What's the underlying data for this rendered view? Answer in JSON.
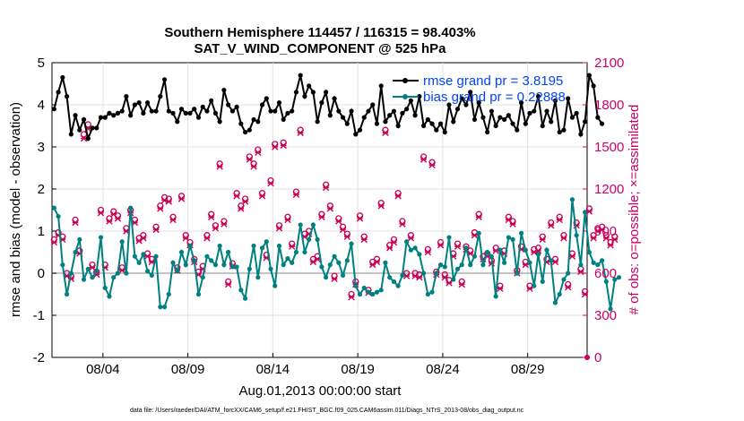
{
  "chart_data": {
    "type": "line",
    "title_line1": "Southern Hemisphere 114457 / 116315 = 98.403%",
    "title_line2": "SAT_V_WIND_COMPONENT @ 525 hPa",
    "xlabel": "Aug.01,2013 00:00:00 start",
    "ylabel_left": "rmse and bias (model - observation)",
    "ylabel_right": "# of obs: o=possible; ×=assimilated",
    "x_start": "Aug.01,2013 00:00:00",
    "xlim": [
      1,
      32.5
    ],
    "ylim_left": [
      -2,
      5
    ],
    "ylim_right": [
      0,
      2100
    ],
    "xticks": [
      {
        "day": 4,
        "label": "08/04"
      },
      {
        "day": 9,
        "label": "08/09"
      },
      {
        "day": 14,
        "label": "08/14"
      },
      {
        "day": 19,
        "label": "08/19"
      },
      {
        "day": 24,
        "label": "08/24"
      },
      {
        "day": 29,
        "label": "08/29"
      }
    ],
    "yticks_left": [
      "-2",
      "-1",
      "0",
      "1",
      "2",
      "3",
      "4",
      "5"
    ],
    "yticks_right": [
      "0",
      "300",
      "600",
      "900",
      "1200",
      "1500",
      "1800",
      "2100"
    ],
    "legend": [
      {
        "label": "rmse grand pr = 3.8195",
        "color": "#000000"
      },
      {
        "label": "bias grand pr = 0.22888",
        "color": "#008080"
      }
    ],
    "x_step_days": 0.25,
    "series": [
      {
        "name": "rmse",
        "color": "#000000",
        "values": [
          3.9,
          4.3,
          4.65,
          4.2,
          3.3,
          3.75,
          3.4,
          3.65,
          3.2,
          3.45,
          3.45,
          3.7,
          3.7,
          3.8,
          3.75,
          3.8,
          3.85,
          4.2,
          3.75,
          4.0,
          4.05,
          3.8,
          4.05,
          3.85,
          3.85,
          4.2,
          4.6,
          3.85,
          3.8,
          3.6,
          3.9,
          3.8,
          3.8,
          3.9,
          3.7,
          3.95,
          3.85,
          4.1,
          3.8,
          3.6,
          4.35,
          4.0,
          3.85,
          3.95,
          3.55,
          3.35,
          3.4,
          3.65,
          3.6,
          4.0,
          4.15,
          3.85,
          3.85,
          4.05,
          3.65,
          3.8,
          3.85,
          4.3,
          4.7,
          4.2,
          4.45,
          4.3,
          3.6,
          4.05,
          4.3,
          3.75,
          4.15,
          3.85,
          3.7,
          3.55,
          3.85,
          3.3,
          3.4,
          3.7,
          3.85,
          4.0,
          3.55,
          4.45,
          3.6,
          3.75,
          3.85,
          3.5,
          3.8,
          3.9,
          4.1,
          3.75,
          4.2,
          3.5,
          3.65,
          3.55,
          3.4,
          3.55,
          3.35,
          4.0,
          3.6,
          3.9,
          4.15,
          4.0,
          4.3,
          3.65,
          4.05,
          3.7,
          3.35,
          3.85,
          3.5,
          3.7,
          3.65,
          3.75,
          3.55,
          3.4,
          4.05,
          3.55,
          3.8,
          3.85,
          4.2,
          3.5,
          3.85,
          3.6,
          4.1,
          3.35,
          3.4,
          4.15,
          3.7,
          3.8,
          3.3,
          3.6,
          4.7,
          4.45,
          3.7,
          3.55
        ],
        "style": "line-markers"
      },
      {
        "name": "bias",
        "color": "#008080",
        "values": [
          1.55,
          1.35,
          0.2,
          -0.5,
          0.0,
          0.5,
          0.8,
          -0.15,
          0.1,
          -0.1,
          0.05,
          0.85,
          -0.35,
          -0.55,
          -0.1,
          0.0,
          0.75,
          0.0,
          1.55,
          0.4,
          0.25,
          0.45,
          0.05,
          -0.05,
          0.4,
          -0.8,
          -0.8,
          -0.5,
          0.25,
          0.05,
          0.5,
          0.2,
          0.65,
          0.3,
          -0.5,
          -0.1,
          0.4,
          0.3,
          0.2,
          0.65,
          0.2,
          0.5,
          0.15,
          0.15,
          -0.4,
          -0.6,
          0.1,
          0.65,
          -0.1,
          0.6,
          0.75,
          0.1,
          -0.3,
          0.65,
          0.2,
          0.35,
          0.25,
          0.5,
          1.15,
          0.5,
          0.8,
          1.15,
          0.8,
          0.15,
          -0.1,
          0.2,
          0.4,
          0.25,
          -0.05,
          0.3,
          0.7,
          -0.3,
          -0.5,
          -0.35,
          -0.45,
          -0.5,
          -0.45,
          -0.4,
          0.25,
          -0.1,
          -0.2,
          -0.3,
          -0.05,
          0.75,
          0.55,
          0.6,
          0.45,
          0.0,
          -0.5,
          -0.45,
          0.0,
          0.2,
          0.15,
          0.85,
          -0.15,
          0.1,
          0.2,
          0.6,
          0.2,
          0.4,
          0.95,
          0.2,
          0.5,
          0.4,
          -0.55,
          0.55,
          0.25,
          0.85,
          0.8,
          0.0,
          0.95,
          0.55,
          0.25,
          -0.3,
          0.45,
          -0.2,
          0.55,
          0.3,
          -0.7,
          -0.5,
          -0.15,
          0.0,
          1.75,
          0.9,
          0.2,
          1.45,
          0.5,
          0.25,
          0.2,
          0.3,
          -0.2,
          -0.85,
          -0.15,
          -0.1
        ]
      },
      {
        "name": "obs possible",
        "color": "#cc0055",
        "values": [
          840,
          890,
          860,
          600,
          580,
          980,
          760,
          1590,
          1660,
          660,
          610,
          1050,
          660,
          990,
          1040,
          1010,
          640,
          920,
          1050,
          980,
          850,
          870,
          740,
          700,
          930,
          1080,
          1140,
          1130,
          1000,
          640,
          1150,
          870,
          820,
          700,
          610,
          650,
          870,
          1020,
          940,
          1380,
          970,
          540,
          670,
          1170,
          1080,
          1130,
          1430,
          1380,
          1480,
          1170,
          730,
          1260,
          1520,
          940,
          1530,
          1000,
          810,
          1180,
          1620,
          880,
          900,
          700,
          720,
          1020,
          1230,
          1080,
          580,
          990,
          930,
          880,
          450,
          540,
          1010,
          860,
          480,
          680,
          700,
          1100,
          1620,
          800,
          840,
          1170,
          970,
          600,
          870,
          600,
          590,
          1430,
          770,
          1390,
          610,
          820,
          590,
          550,
          740,
          810,
          540,
          790,
          760,
          890,
          1020,
          720,
          740,
          690,
          780,
          510,
          760,
          1000,
          970,
          620,
          790,
          680,
          510,
          770,
          780,
          860,
          700,
          960,
          700,
          1000,
          870,
          520,
          740,
          960,
          630,
          470,
          1060,
          870,
          920,
          930,
          870,
          820,
          860
        ]
      },
      {
        "name": "obs assimilated",
        "color": "#cc0055",
        "values": [
          820,
          870,
          840,
          580,
          560,
          960,
          740,
          1560,
          1630,
          640,
          590,
          1030,
          640,
          970,
          1020,
          990,
          620,
          900,
          1030,
          960,
          830,
          850,
          720,
          680,
          910,
          1060,
          1120,
          1110,
          980,
          620,
          1130,
          850,
          800,
          680,
          590,
          630,
          850,
          1000,
          920,
          1360,
          950,
          520,
          650,
          1150,
          1060,
          1110,
          1410,
          1360,
          1460,
          1150,
          710,
          1240,
          1500,
          920,
          1510,
          980,
          790,
          1160,
          1600,
          860,
          880,
          680,
          700,
          1000,
          1210,
          1060,
          560,
          970,
          910,
          860,
          430,
          520,
          990,
          840,
          460,
          660,
          680,
          1080,
          1600,
          780,
          820,
          1150,
          950,
          580,
          850,
          580,
          570,
          1410,
          750,
          1370,
          590,
          800,
          570,
          530,
          720,
          790,
          520,
          770,
          740,
          870,
          1000,
          700,
          720,
          670,
          760,
          490,
          740,
          980,
          950,
          600,
          770,
          660,
          490,
          750,
          760,
          840,
          680,
          940,
          680,
          980,
          850,
          500,
          720,
          940,
          610,
          450,
          1040,
          850,
          900,
          910,
          850,
          800,
          840
        ]
      }
    ]
  },
  "footer": "data file: /Users/raeder/DAI/ATM_forcXX/CAM6_setup/f.e21.FHIST_BGC.f09_025.CAM6assim.011/Diags_NTrS_2013-08/obs_diag_output.nc"
}
